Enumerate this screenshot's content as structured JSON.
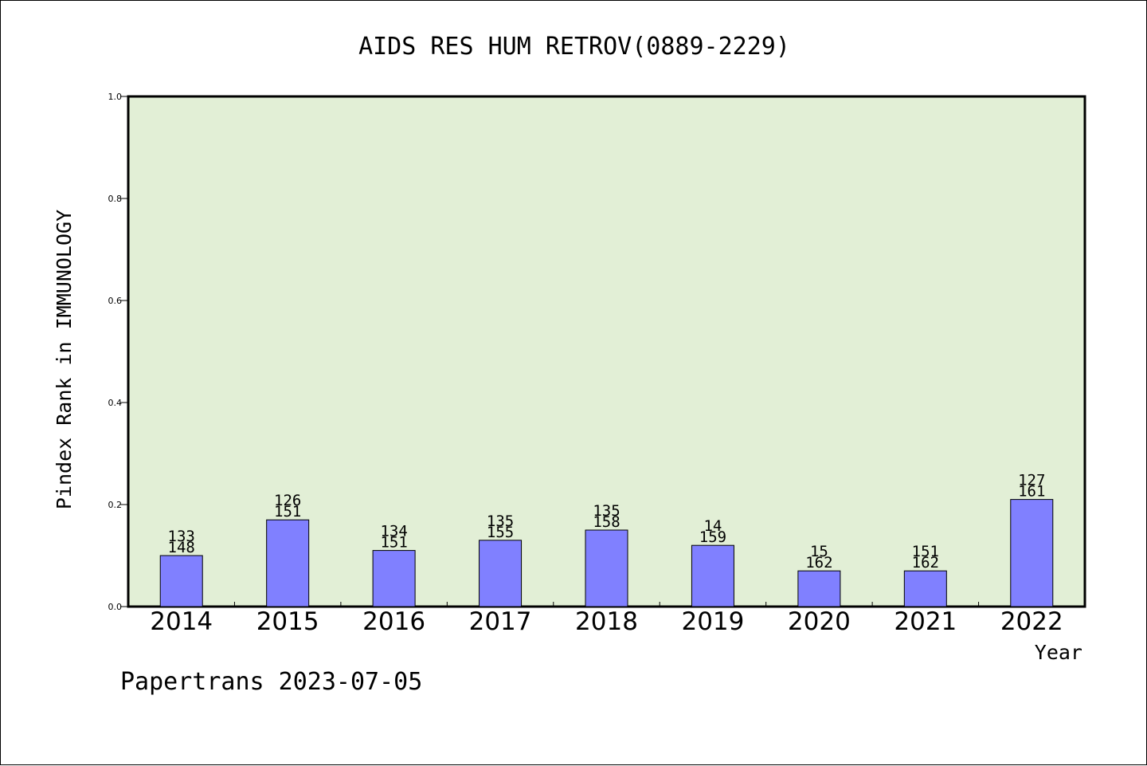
{
  "chart_data": {
    "type": "bar",
    "title": "AIDS RES HUM RETROV(0889-2229)",
    "xlabel": "Year",
    "ylabel": "Pindex Rank in IMMUNOLOGY",
    "ylim": [
      0,
      1.0
    ],
    "yticks": [
      "0.0",
      "0.2",
      "0.4",
      "0.6",
      "0.8",
      "1.0"
    ],
    "grid": false,
    "categories": [
      "2014",
      "2015",
      "2016",
      "2017",
      "2018",
      "2019",
      "2020",
      "2021",
      "2022"
    ],
    "values": [
      0.1,
      0.17,
      0.11,
      0.13,
      0.15,
      0.12,
      0.07,
      0.07,
      0.21
    ],
    "label_top": [
      "133",
      "126",
      "134",
      "135",
      "135",
      "14",
      "15",
      "151",
      "127"
    ],
    "label_bottom": [
      "148",
      "151",
      "151",
      "155",
      "158",
      "159",
      "162",
      "162",
      "161"
    ],
    "colors": {
      "plot_bg": "#e2efd6",
      "bar": "#8080ff",
      "axis": "#000000"
    }
  },
  "footer": "Papertrans 2023-07-05"
}
